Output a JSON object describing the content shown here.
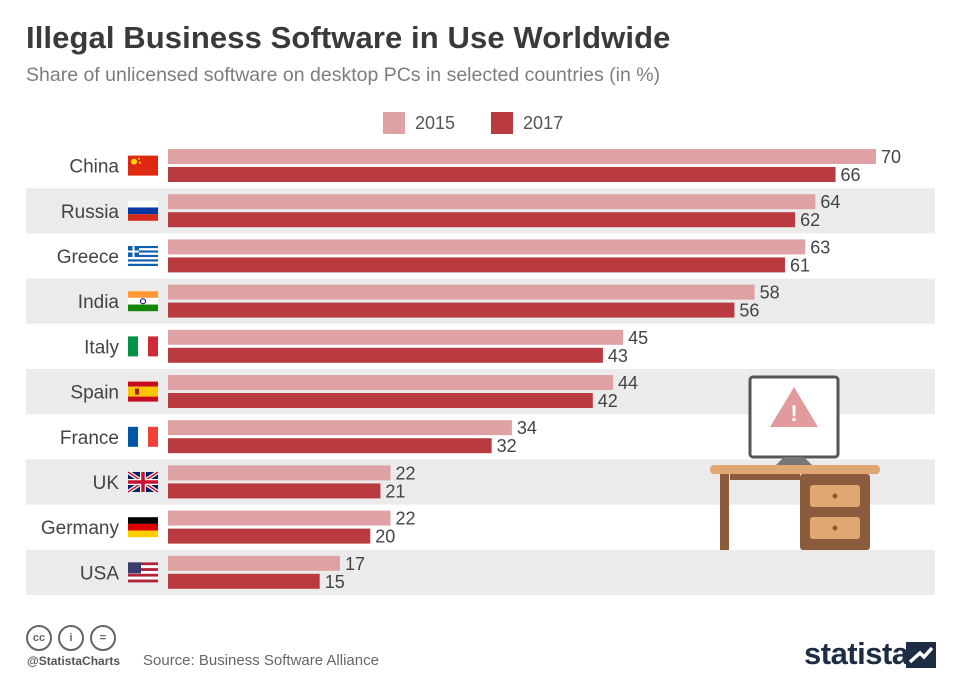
{
  "header": {
    "title": "Illegal Business Software in Use Worldwide",
    "subtitle": "Share of unlicensed software on desktop PCs in selected countries (in %)"
  },
  "legend": [
    {
      "label": "2015",
      "color": "#dea1a4"
    },
    {
      "label": "2017",
      "color": "#b93b3f"
    }
  ],
  "chart_data": {
    "type": "bar",
    "orientation": "horizontal",
    "title": "Illegal Business Software in Use Worldwide",
    "subtitle": "Share of unlicensed software on desktop PCs in selected countries (in %)",
    "categories": [
      "China",
      "Russia",
      "Greece",
      "India",
      "Italy",
      "Spain",
      "France",
      "UK",
      "Germany",
      "USA"
    ],
    "series": [
      {
        "name": "2015",
        "color": "#dea1a4",
        "values": [
          70,
          64,
          63,
          58,
          45,
          44,
          34,
          22,
          22,
          17
        ]
      },
      {
        "name": "2017",
        "color": "#b93b3f",
        "values": [
          66,
          62,
          61,
          56,
          43,
          42,
          32,
          21,
          20,
          15
        ]
      }
    ],
    "xlim": [
      0,
      70
    ],
    "xlabel": "",
    "ylabel": "",
    "legend_position": "top-center",
    "flag_icons": [
      "china-flag-icon",
      "russia-flag-icon",
      "greece-flag-icon",
      "india-flag-icon",
      "italy-flag-icon",
      "spain-flag-icon",
      "france-flag-icon",
      "uk-flag-icon",
      "germany-flag-icon",
      "usa-flag-icon"
    ]
  },
  "footer": {
    "handle": "@StatistaCharts",
    "source": "Source: Business Software Alliance",
    "brand": "statista",
    "license_icons": [
      "cc-icon",
      "by-icon",
      "nd-icon"
    ]
  }
}
